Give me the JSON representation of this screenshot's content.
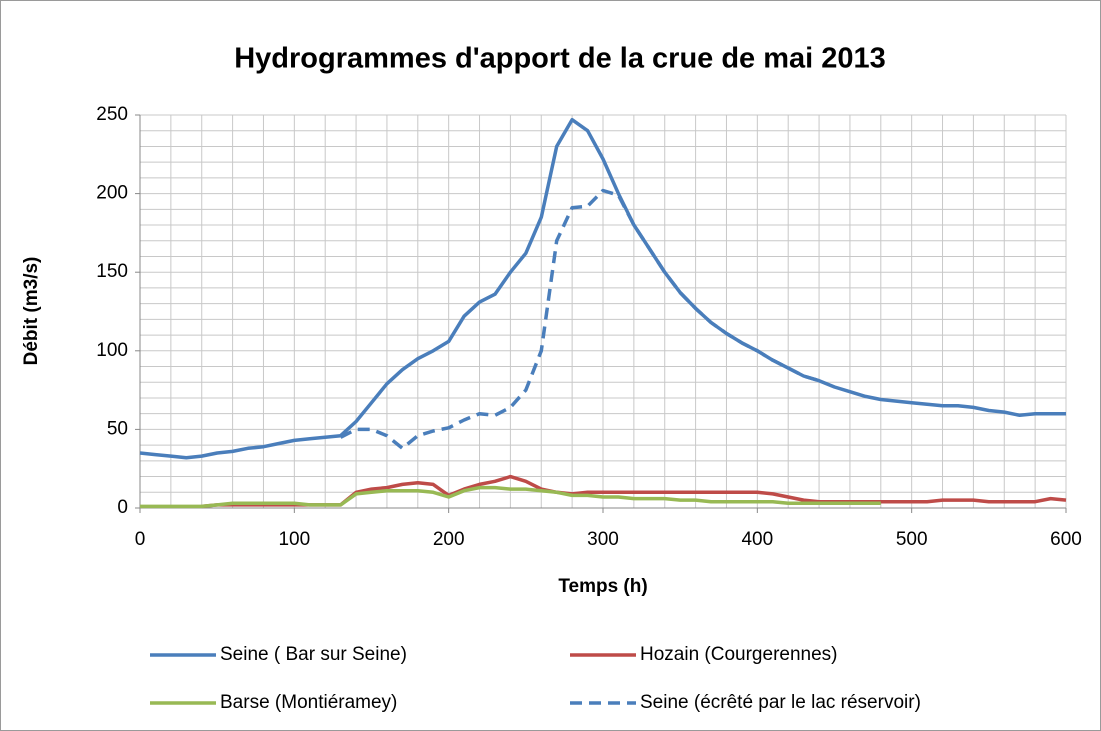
{
  "chart_data": {
    "type": "line",
    "title": "Hydrogrammes d'apport de la crue de mai 2013",
    "x_label": "Temps  (h)",
    "y_label": "Débit (m3/s)",
    "x": [
      0,
      10,
      20,
      30,
      40,
      50,
      60,
      70,
      80,
      90,
      100,
      110,
      120,
      130,
      140,
      150,
      160,
      170,
      180,
      190,
      200,
      210,
      220,
      230,
      240,
      250,
      260,
      270,
      280,
      290,
      300,
      310,
      320,
      330,
      340,
      350,
      360,
      370,
      380,
      390,
      400,
      410,
      420,
      430,
      440,
      450,
      460,
      470,
      480,
      490,
      500,
      510,
      520,
      530,
      540,
      550,
      560,
      570,
      580,
      590,
      600
    ],
    "series": [
      {
        "name": "Seine ( Bar sur Seine)",
        "color": "#4a7ebb",
        "dash": false,
        "values": [
          35,
          34,
          33,
          32,
          33,
          35,
          36,
          38,
          39,
          41,
          43,
          44,
          45,
          46,
          55,
          67,
          79,
          88,
          95,
          100,
          106,
          122,
          131,
          136,
          150,
          162,
          185,
          230,
          247,
          240,
          222,
          200,
          180,
          165,
          150,
          137,
          127,
          118,
          111,
          105,
          100,
          94,
          89,
          84,
          81,
          77,
          74,
          71,
          69,
          68,
          67,
          66,
          65,
          65,
          64,
          62,
          61,
          59,
          60,
          60,
          60
        ]
      },
      {
        "name": "Hozain (Courgerennes)",
        "color": "#be4b48",
        "dash": false,
        "values": [
          null,
          null,
          null,
          null,
          1,
          2,
          2,
          2,
          2,
          2,
          2,
          2,
          2,
          2,
          10,
          12,
          13,
          15,
          16,
          15,
          8,
          12,
          15,
          17,
          20,
          17,
          12,
          10,
          9,
          10,
          10,
          10,
          10,
          10,
          10,
          10,
          10,
          10,
          10,
          10,
          10,
          9,
          7,
          5,
          4,
          4,
          4,
          4,
          4,
          4,
          4,
          4,
          5,
          5,
          5,
          4,
          4,
          4,
          4,
          6,
          5
        ]
      },
      {
        "name": "Barse (Montiéramey)",
        "color": "#98b954",
        "dash": false,
        "values": [
          1,
          1,
          1,
          1,
          1,
          2,
          3,
          3,
          3,
          3,
          3,
          2,
          2,
          2,
          9,
          10,
          11,
          11,
          11,
          10,
          7,
          11,
          13,
          13,
          12,
          12,
          11,
          10,
          8,
          8,
          7,
          7,
          6,
          6,
          6,
          5,
          5,
          4,
          4,
          4,
          4,
          4,
          3,
          3,
          3,
          3,
          3,
          3,
          3,
          null,
          null,
          null,
          null,
          null,
          null,
          null,
          null,
          null,
          null,
          null,
          null
        ]
      },
      {
        "name": "Seine (écrêté par le lac réservoir)",
        "color": "#4a7ebb",
        "dash": true,
        "values": [
          null,
          null,
          null,
          null,
          null,
          null,
          null,
          null,
          null,
          null,
          null,
          null,
          null,
          45,
          50,
          50,
          46,
          38,
          46,
          49,
          51,
          56,
          60,
          59,
          64,
          75,
          100,
          170,
          191,
          192,
          202,
          199,
          180,
          165,
          150,
          137,
          127,
          118,
          111,
          105,
          100,
          94,
          89,
          84,
          81,
          null,
          null,
          null,
          null,
          null,
          null,
          null,
          null,
          null,
          null,
          null,
          null,
          null,
          null,
          null,
          null
        ]
      }
    ],
    "xlim": [
      0,
      600
    ],
    "xticks": [
      0,
      100,
      200,
      300,
      400,
      500,
      600
    ],
    "ylim": [
      0,
      250
    ],
    "yticks": [
      0,
      50,
      100,
      150,
      200,
      250
    ],
    "grid": true,
    "legend": "bottom"
  }
}
